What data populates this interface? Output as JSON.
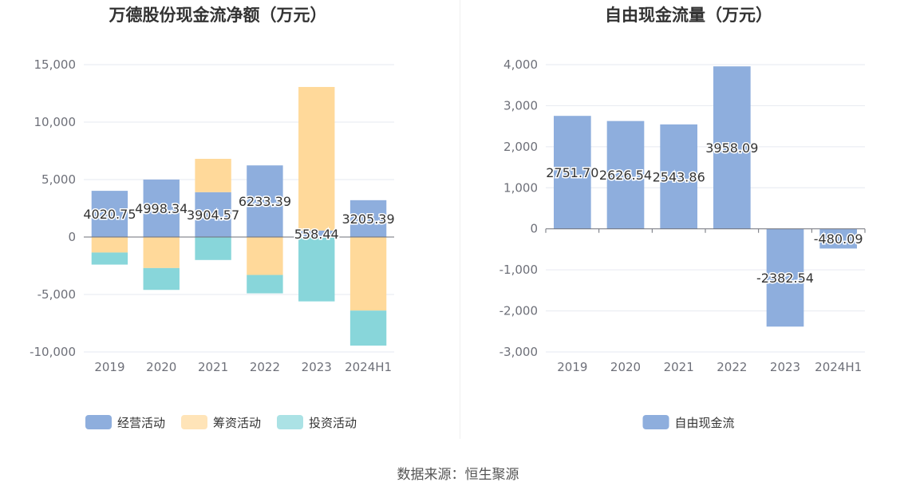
{
  "chart_data": [
    {
      "type": "bar",
      "stacked": true,
      "title": "万德股份现金流净额（万元）",
      "categories": [
        "2019",
        "2020",
        "2021",
        "2022",
        "2023",
        "2024H1"
      ],
      "ylim": [
        -10000,
        15000
      ],
      "yticks": [
        -10000,
        -5000,
        0,
        5000,
        10000,
        15000
      ],
      "ytick_labels": [
        "-10,000",
        "-5,000",
        "0",
        "5,000",
        "10,000",
        "15,000"
      ],
      "series": [
        {
          "name": "经营活动",
          "color": "#8eaedd",
          "values": [
            4020.75,
            4998.34,
            3904.57,
            6233.39,
            558.44,
            3205.39
          ],
          "labels": [
            "4020.75",
            "4998.34",
            "3904.57",
            "6233.39",
            "558.44",
            "3205.39"
          ]
        },
        {
          "name": "筹资活动",
          "color": "#ffd99a",
          "values": [
            -1350,
            -2700,
            2900,
            -3300,
            12500,
            -6400
          ]
        },
        {
          "name": "投资活动",
          "color": "#88d6da",
          "values": [
            -1050,
            -1900,
            -2000,
            -1600,
            -5600,
            -3050
          ]
        }
      ],
      "legend": "bottom"
    },
    {
      "type": "bar",
      "title": "自由现金流量（万元）",
      "categories": [
        "2019",
        "2020",
        "2021",
        "2022",
        "2023",
        "2024H1"
      ],
      "ylim": [
        -3000,
        4000
      ],
      "yticks": [
        -3000,
        -2000,
        -1000,
        0,
        1000,
        2000,
        3000,
        4000
      ],
      "ytick_labels": [
        "-3,000",
        "-2,000",
        "-1,000",
        "0",
        "1,000",
        "2,000",
        "3,000",
        "4,000"
      ],
      "series": [
        {
          "name": "自由现金流",
          "color": "#8eaedd",
          "values": [
            2751.7,
            2626.54,
            2543.86,
            3958.09,
            -2382.54,
            -480.09
          ],
          "labels": [
            "2751.70",
            "2626.54",
            "2543.86",
            "3958.09",
            "-2382.54",
            "-480.09"
          ]
        }
      ],
      "legend": "bottom"
    }
  ],
  "footer": {
    "source": "数据来源：恒生聚源"
  }
}
